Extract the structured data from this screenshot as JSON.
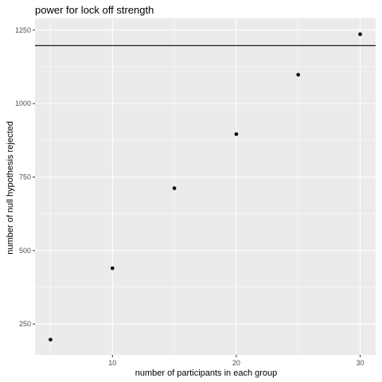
{
  "chart_data": {
    "type": "scatter",
    "title": "power for lock off strength",
    "xlabel": "number of participants in each group",
    "ylabel": "number of null hypothesis rejected",
    "x": [
      5,
      10,
      15,
      20,
      25,
      30
    ],
    "y": [
      197,
      440,
      712,
      896,
      1098,
      1236
    ],
    "xlim": [
      3.75,
      31.25
    ],
    "ylim": [
      145,
      1290
    ],
    "xticks": [
      10,
      20,
      30
    ],
    "yticks": [
      250,
      500,
      750,
      1000,
      1250
    ],
    "hline": 1197,
    "grid": true,
    "legend": "none",
    "colors": {
      "panel": "#ebebeb",
      "grid": "#ffffff",
      "point": "#000000",
      "hline": "#000000"
    }
  }
}
